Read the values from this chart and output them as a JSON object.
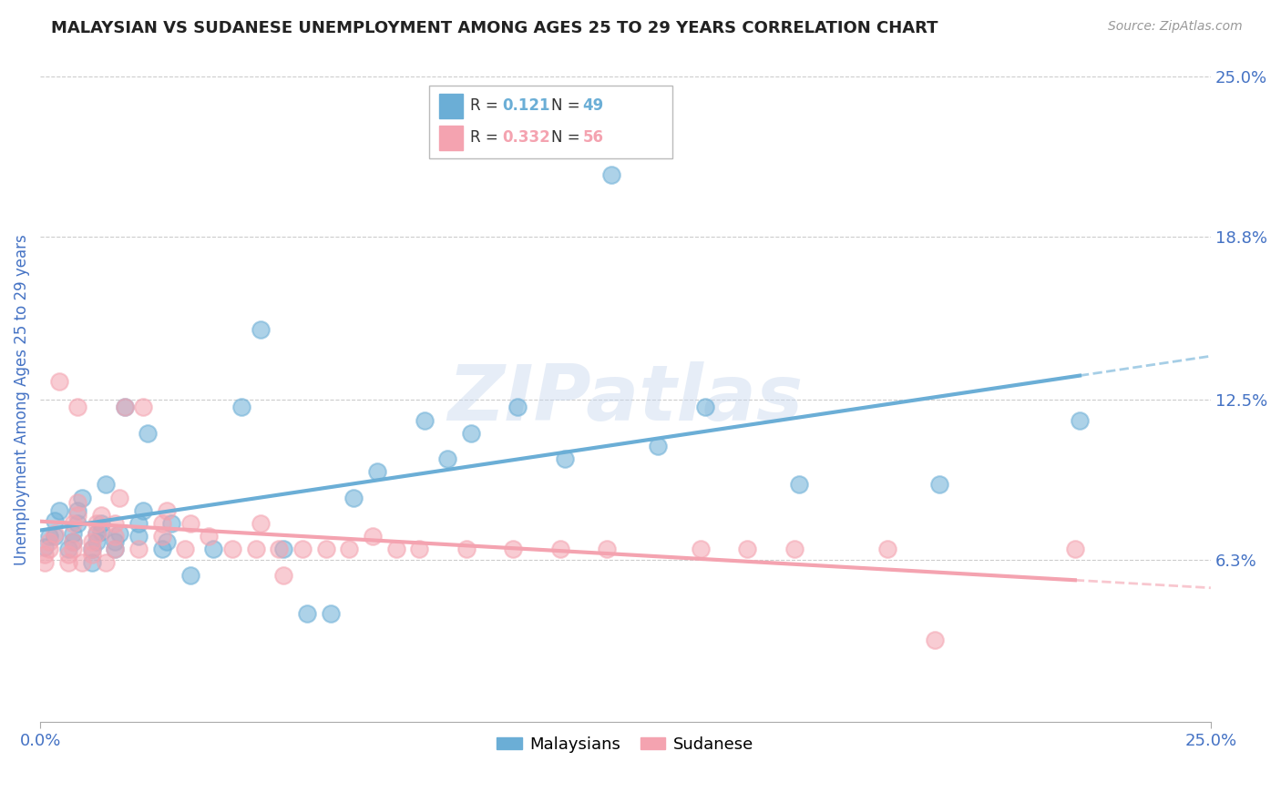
{
  "title": "MALAYSIAN VS SUDANESE UNEMPLOYMENT AMONG AGES 25 TO 29 YEARS CORRELATION CHART",
  "source": "Source: ZipAtlas.com",
  "ylabel": "Unemployment Among Ages 25 to 29 years",
  "xlim": [
    0.0,
    0.25
  ],
  "ylim": [
    0.0,
    0.25
  ],
  "xtick_labels": [
    "0.0%",
    "25.0%"
  ],
  "ytick_labels": [
    "6.3%",
    "12.5%",
    "18.8%",
    "25.0%"
  ],
  "ytick_positions": [
    0.063,
    0.125,
    0.188,
    0.25
  ],
  "background_color": "#ffffff",
  "grid_color": "#cccccc",
  "watermark": "ZIPatlas",
  "malaysian_color": "#6baed6",
  "sudanese_color": "#f4a3b0",
  "R_malaysian": 0.121,
  "N_malaysian": 49,
  "R_sudanese": 0.332,
  "N_sudanese": 56,
  "malaysian_scatter_x": [
    0.001,
    0.002,
    0.003,
    0.003,
    0.004,
    0.006,
    0.007,
    0.007,
    0.008,
    0.008,
    0.009,
    0.011,
    0.011,
    0.012,
    0.012,
    0.013,
    0.013,
    0.014,
    0.016,
    0.016,
    0.017,
    0.018,
    0.021,
    0.021,
    0.022,
    0.023,
    0.026,
    0.027,
    0.028,
    0.032,
    0.037,
    0.043,
    0.047,
    0.052,
    0.057,
    0.062,
    0.067,
    0.072,
    0.082,
    0.087,
    0.092,
    0.102,
    0.112,
    0.122,
    0.132,
    0.142,
    0.162,
    0.192,
    0.222
  ],
  "malaysian_scatter_y": [
    0.068,
    0.072,
    0.072,
    0.078,
    0.082,
    0.067,
    0.07,
    0.073,
    0.077,
    0.082,
    0.087,
    0.062,
    0.067,
    0.07,
    0.073,
    0.074,
    0.077,
    0.092,
    0.067,
    0.07,
    0.073,
    0.122,
    0.072,
    0.077,
    0.082,
    0.112,
    0.067,
    0.07,
    0.077,
    0.057,
    0.067,
    0.122,
    0.152,
    0.067,
    0.042,
    0.042,
    0.087,
    0.097,
    0.117,
    0.102,
    0.112,
    0.122,
    0.102,
    0.212,
    0.107,
    0.122,
    0.092,
    0.092,
    0.117
  ],
  "sudanese_scatter_x": [
    0.001,
    0.001,
    0.002,
    0.002,
    0.003,
    0.004,
    0.006,
    0.006,
    0.007,
    0.007,
    0.007,
    0.008,
    0.008,
    0.008,
    0.009,
    0.011,
    0.011,
    0.011,
    0.012,
    0.012,
    0.013,
    0.014,
    0.016,
    0.016,
    0.016,
    0.017,
    0.018,
    0.021,
    0.022,
    0.026,
    0.026,
    0.027,
    0.031,
    0.032,
    0.036,
    0.041,
    0.046,
    0.047,
    0.051,
    0.052,
    0.056,
    0.061,
    0.066,
    0.071,
    0.076,
    0.081,
    0.091,
    0.101,
    0.111,
    0.121,
    0.141,
    0.151,
    0.161,
    0.181,
    0.191,
    0.221
  ],
  "sudanese_scatter_y": [
    0.062,
    0.065,
    0.067,
    0.07,
    0.073,
    0.132,
    0.062,
    0.065,
    0.067,
    0.07,
    0.077,
    0.08,
    0.085,
    0.122,
    0.062,
    0.065,
    0.067,
    0.07,
    0.073,
    0.077,
    0.08,
    0.062,
    0.067,
    0.072,
    0.077,
    0.087,
    0.122,
    0.067,
    0.122,
    0.072,
    0.077,
    0.082,
    0.067,
    0.077,
    0.072,
    0.067,
    0.067,
    0.077,
    0.067,
    0.057,
    0.067,
    0.067,
    0.067,
    0.072,
    0.067,
    0.067,
    0.067,
    0.067,
    0.067,
    0.067,
    0.067,
    0.067,
    0.067,
    0.067,
    0.032,
    0.067
  ]
}
